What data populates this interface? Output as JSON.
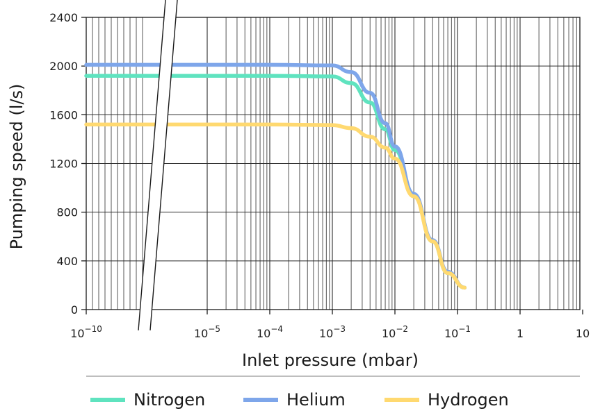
{
  "chart_data": {
    "type": "line",
    "xlabel": "Inlet pressure (mbar)",
    "ylabel": "Pumping speed (l/s)",
    "x_scale": "log",
    "x_axis_break": "between 10^-10 and 10^-5",
    "xlim": [
      1e-10,
      10
    ],
    "ylim": [
      0,
      2400
    ],
    "y_ticks": [
      0,
      400,
      800,
      1200,
      1600,
      2000,
      2400
    ],
    "y_tick_labels": [
      "0",
      "400",
      "800",
      "1200",
      "1600",
      "2000",
      "2400"
    ],
    "x_ticks": [
      {
        "value": 1e-10,
        "base": "10",
        "exp": "−10"
      },
      {
        "value": 1e-05,
        "base": "10",
        "exp": "−5"
      },
      {
        "value": 0.0001,
        "base": "10",
        "exp": "−4"
      },
      {
        "value": 0.001,
        "base": "10",
        "exp": "−3"
      },
      {
        "value": 0.01,
        "base": "10",
        "exp": "−2"
      },
      {
        "value": 0.1,
        "base": "10",
        "exp": "−1"
      },
      {
        "value": 1,
        "base": "1",
        "exp": ""
      },
      {
        "value": 10,
        "base": "10",
        "exp": ""
      }
    ],
    "grid": true,
    "legend_position": "bottom",
    "series": [
      {
        "name": "Nitrogen",
        "color": "#5fe3bf",
        "points": [
          [
            1e-10,
            1920
          ],
          [
            1e-05,
            1920
          ],
          [
            0.0001,
            1920
          ],
          [
            0.001,
            1915
          ],
          [
            0.002,
            1860
          ],
          [
            0.004,
            1700
          ],
          [
            0.007,
            1480
          ],
          [
            0.01,
            1310
          ],
          [
            0.02,
            940
          ],
          [
            0.04,
            560
          ],
          [
            0.07,
            300
          ],
          [
            0.13,
            180
          ]
        ]
      },
      {
        "name": "Helium",
        "color": "#7ea6ea",
        "points": [
          [
            1e-10,
            2010
          ],
          [
            1e-05,
            2010
          ],
          [
            0.0001,
            2010
          ],
          [
            0.001,
            2005
          ],
          [
            0.002,
            1950
          ],
          [
            0.004,
            1780
          ],
          [
            0.007,
            1530
          ],
          [
            0.01,
            1340
          ],
          [
            0.02,
            950
          ],
          [
            0.04,
            570
          ],
          [
            0.07,
            310
          ],
          [
            0.13,
            180
          ]
        ]
      },
      {
        "name": "Hydrogen",
        "color": "#ffd970",
        "points": [
          [
            1e-10,
            1520
          ],
          [
            1e-05,
            1520
          ],
          [
            0.0001,
            1520
          ],
          [
            0.001,
            1515
          ],
          [
            0.002,
            1490
          ],
          [
            0.004,
            1420
          ],
          [
            0.007,
            1330
          ],
          [
            0.01,
            1240
          ],
          [
            0.02,
            930
          ],
          [
            0.04,
            560
          ],
          [
            0.07,
            300
          ],
          [
            0.13,
            180
          ]
        ]
      }
    ]
  }
}
